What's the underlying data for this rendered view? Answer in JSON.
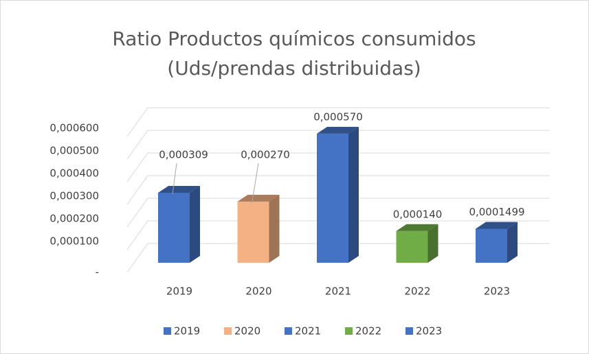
{
  "chart_data": {
    "type": "bar3d",
    "title": [
      "Ratio Productos químicos consumidos",
      "(Uds/prendas distribuidas)"
    ],
    "categories": [
      "2019",
      "2020",
      "2021",
      "2022",
      "2023"
    ],
    "values": [
      0.000309,
      0.00027,
      0.00057,
      0.00014,
      0.0001499
    ],
    "value_labels": [
      "0,000309",
      "0,000270",
      "0,000570",
      "0,000140",
      "0,0001499"
    ],
    "colors": [
      "#4472c4",
      "#f4b183",
      "#4472c4",
      "#70ad47",
      "#4472c4"
    ],
    "ylim": [
      0,
      0.0006
    ],
    "yticks": [
      {
        "value": 0,
        "label": "-"
      },
      {
        "value": 0.0001,
        "label": "0,000100"
      },
      {
        "value": 0.0002,
        "label": "0,000200"
      },
      {
        "value": 0.0003,
        "label": "0,000300"
      },
      {
        "value": 0.0004,
        "label": "0,000400"
      },
      {
        "value": 0.0005,
        "label": "0,000500"
      },
      {
        "value": 0.0006,
        "label": "0,000600"
      }
    ],
    "grid": true,
    "legend": "bottom"
  }
}
